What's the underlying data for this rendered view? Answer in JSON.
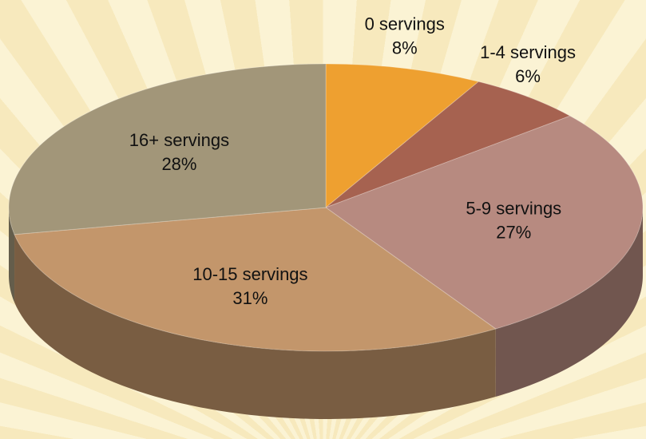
{
  "chart_data": {
    "type": "pie",
    "categories": [
      "0 servings",
      "1-4 servings",
      "5-9 servings",
      "10-15 servings",
      "16+ servings"
    ],
    "values": [
      8,
      6,
      27,
      31,
      28
    ],
    "value_labels": [
      "8%",
      "6%",
      "27%",
      "31%",
      "28%"
    ],
    "colors": [
      "#eea030",
      "#a66250",
      "#b78a80",
      "#c3966b",
      "#a29679"
    ]
  }
}
